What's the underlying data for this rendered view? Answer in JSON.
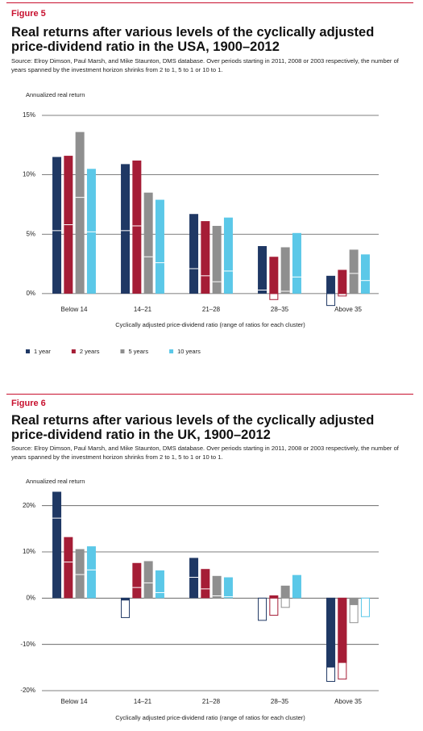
{
  "chart_data": [
    {
      "type": "bar",
      "figure_label": "Figure 5",
      "title": "Real returns after various levels of the cyclically adjusted price-dividend ratio in the USA, 1900–2012",
      "subtitle": "Source: Elroy Dimson, Paul Marsh, and Mike Staunton, DMS database. Over periods starting in 2011, 2008 or 2003 respectively, the number of years spanned by the investment horizon shrinks from 2 to 1, 5 to 1 or 10 to 1.",
      "y_label": "Annualized real return",
      "x_label": "Cyclically adjusted price-dividend ratio  (range of ratios for each cluster)",
      "categories": [
        "Below 14",
        "14–21",
        "21–28",
        "28–35",
        "Above 35"
      ],
      "series": [
        {
          "name": "1 year",
          "color": "#1f3864",
          "values": [
            11.5,
            10.9,
            6.7,
            4.0,
            1.5
          ],
          "outline": [
            null,
            null,
            null,
            null,
            -1.0
          ],
          "lines": [
            5.3,
            5.3,
            2.1,
            0.3,
            null
          ]
        },
        {
          "name": "2 years",
          "color": "#a51d36",
          "values": [
            11.6,
            11.2,
            6.1,
            3.1,
            2.0
          ],
          "outline": [
            null,
            null,
            null,
            -0.5,
            -0.2
          ],
          "lines": [
            5.8,
            5.7,
            1.5,
            null,
            null
          ]
        },
        {
          "name": "5 years",
          "color": "#8f8f8f",
          "values": [
            13.6,
            8.5,
            5.7,
            3.9,
            3.7
          ],
          "outline": [
            null,
            null,
            null,
            null,
            null
          ],
          "lines": [
            8.1,
            3.1,
            1.0,
            0.2,
            1.7
          ]
        },
        {
          "name": "10 years",
          "color": "#5bc8e8",
          "values": [
            10.5,
            7.9,
            6.4,
            5.1,
            3.3
          ],
          "outline": [
            null,
            null,
            null,
            null,
            null
          ],
          "lines": [
            5.2,
            2.6,
            1.9,
            1.4,
            1.1
          ]
        }
      ],
      "ylim": [
        -1.5,
        15
      ],
      "yticks": [
        {
          "value": 0,
          "label": "0%"
        },
        {
          "value": 5,
          "label": "5%"
        },
        {
          "value": 10,
          "label": "10%"
        },
        {
          "value": 15,
          "label": "15%"
        }
      ],
      "grid": true,
      "legend": true
    },
    {
      "type": "bar",
      "figure_label": "Figure 6",
      "title": "Real returns after various levels of the cyclically adjusted price-dividend ratio in the UK, 1900–2012",
      "subtitle": "Source: Elroy Dimson, Paul Marsh, and Mike Staunton, DMS database. Over periods starting in 2011, 2008 or 2003 respectively, the number of years spanned by the investment horizon shrinks from 2 to 1, 5 to 1 or 10 to 1.",
      "y_label": "Annualized real return",
      "x_label": "Cyclically adjusted price-dividend ratio  (range of ratios for each cluster)",
      "categories": [
        "Below 14",
        "14–21",
        "21–28",
        "28–35",
        "Above 35"
      ],
      "series": [
        {
          "color": "#1f3864",
          "values": [
            23,
            -0.5,
            8.7,
            null,
            -15
          ],
          "outline": [
            null,
            -4.2,
            null,
            -4.8,
            -18
          ],
          "lines": [
            17.3,
            null,
            4.5,
            null,
            null
          ]
        },
        {
          "color": "#a51d36",
          "values": [
            13.2,
            7.6,
            6.3,
            0.6,
            -14
          ],
          "outline": [
            null,
            null,
            null,
            -3.7,
            -17.5
          ],
          "lines": [
            7.8,
            2.3,
            2.0,
            null,
            null
          ]
        },
        {
          "color": "#8f8f8f",
          "values": [
            10.6,
            8.0,
            4.8,
            2.7,
            -1.5
          ],
          "outline": [
            null,
            null,
            null,
            -2.0,
            -5.3
          ],
          "lines": [
            5.1,
            3.3,
            0.5,
            null,
            null
          ]
        },
        {
          "color": "#5bc8e8",
          "values": [
            11.2,
            6.0,
            4.5,
            5.0,
            null
          ],
          "outline": [
            null,
            null,
            null,
            null,
            -4.0
          ],
          "lines": [
            6.1,
            1.2,
            0.3,
            null,
            null
          ]
        }
      ],
      "ylim": [
        -20,
        25
      ],
      "yticks": [
        {
          "value": -20,
          "label": "-20%"
        },
        {
          "value": -10,
          "label": "-10%"
        },
        {
          "value": 0,
          "label": "0%"
        },
        {
          "value": 10,
          "label": "10%"
        },
        {
          "value": 20,
          "label": "20%"
        }
      ],
      "grid": true,
      "legend": false
    }
  ]
}
